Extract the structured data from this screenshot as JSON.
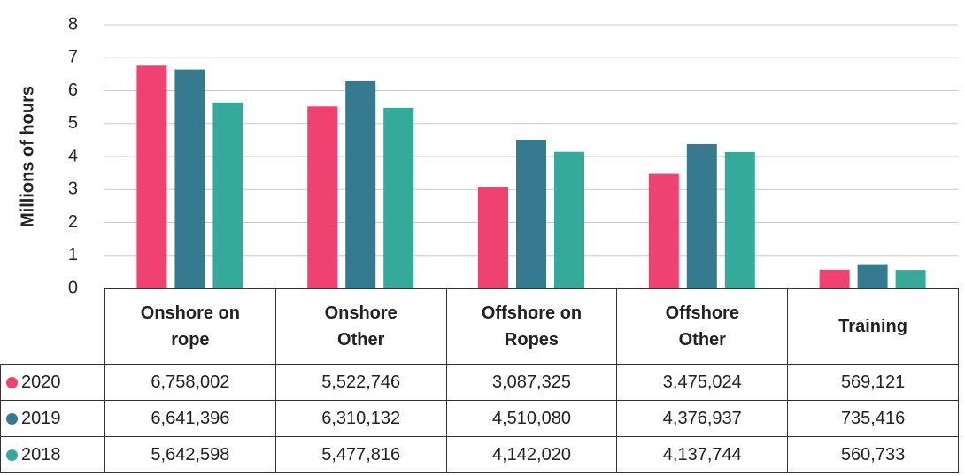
{
  "chart_data": {
    "type": "bar",
    "y_label": "Millions of hours",
    "categories": [
      "Onshore on rope",
      "Onshore Other",
      "Offshore on Ropes",
      "Offshore Other",
      "Training"
    ],
    "series": [
      {
        "name": "2020",
        "color": "#ef4270",
        "values": [
          6.758002,
          5.522746,
          3.087325,
          3.475024,
          0.569121
        ],
        "value_labels": [
          "6,758,002",
          "5,522,746",
          "3,087,325",
          "3,475,024",
          "569,121"
        ]
      },
      {
        "name": "2019",
        "color": "#367a8f",
        "values": [
          6.641396,
          6.310132,
          4.51008,
          4.376937,
          0.735416
        ],
        "value_labels": [
          "6,641,396",
          "6,310,132",
          "4,510,080",
          "4,376,937",
          "735,416"
        ]
      },
      {
        "name": "2018",
        "color": "#35a99a",
        "values": [
          5.642598,
          5.477816,
          4.14202,
          4.137744,
          0.560733
        ],
        "value_labels": [
          "5,642,598",
          "5,477,816",
          "4,142,020",
          "4,137,744",
          "560,733"
        ]
      }
    ],
    "ylim": [
      0,
      8
    ],
    "yticks": [
      0,
      1,
      2,
      3,
      4,
      5,
      6,
      7,
      8
    ],
    "grid": true
  }
}
